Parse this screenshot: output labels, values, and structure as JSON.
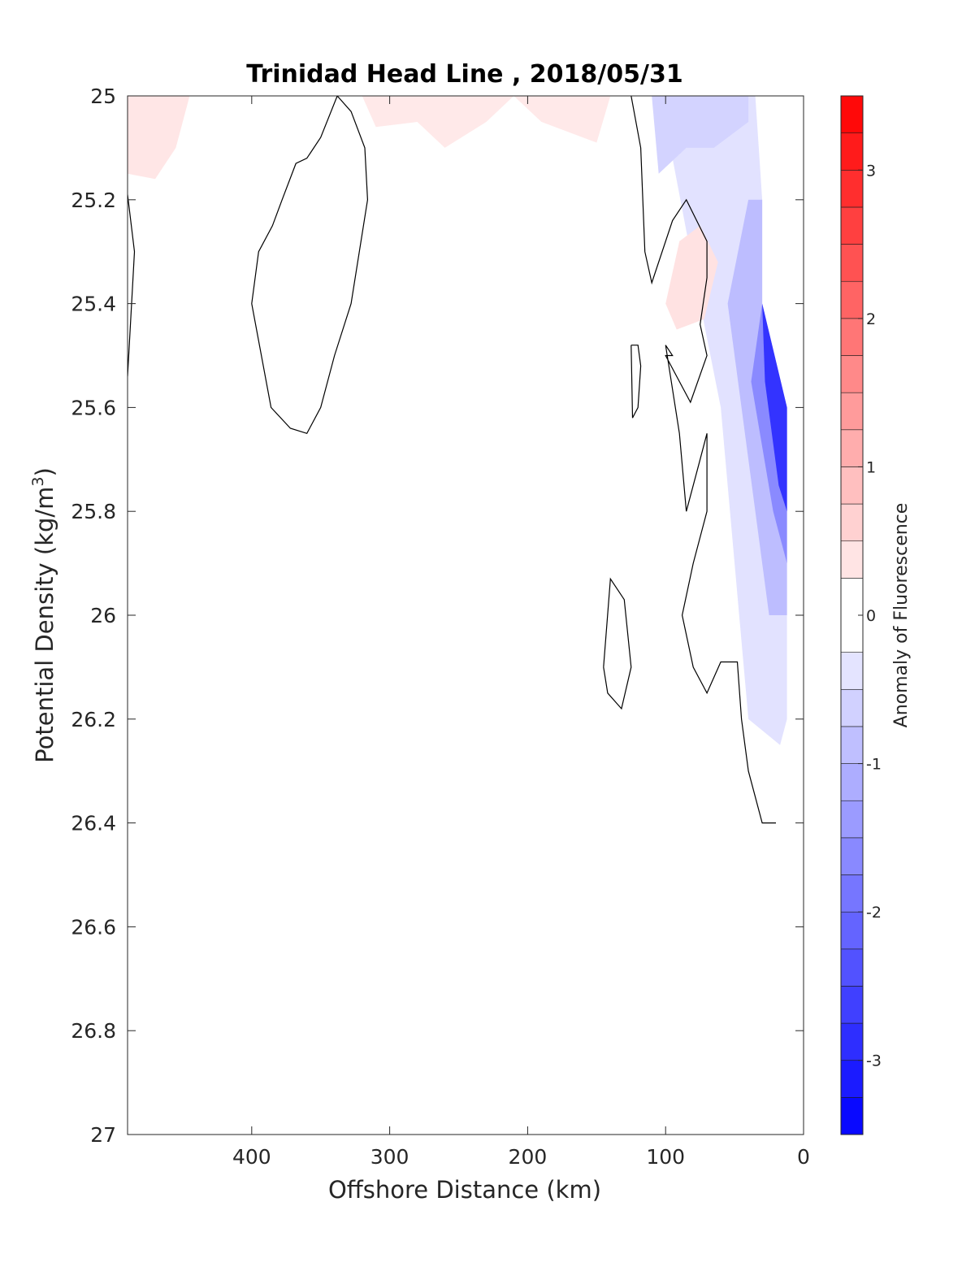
{
  "chart_data": {
    "type": "heatmap",
    "title": "Trinidad Head Line , 2018/05/31",
    "xlabel": "Offshore Distance (km)",
    "ylabel": "Potential Density (kg/m",
    "ylabel_superscript": "3",
    "ylabel_suffix": ")",
    "x_reversed": true,
    "y_reversed": true,
    "xlim": [
      490,
      0
    ],
    "ylim": [
      25,
      27
    ],
    "x_ticks": [
      400,
      300,
      200,
      100,
      0
    ],
    "x_tick_labels": [
      "400",
      "300",
      "200",
      "100",
      "0"
    ],
    "y_ticks": [
      25,
      25.2,
      25.4,
      25.6,
      25.8,
      26,
      26.2,
      26.4,
      26.6,
      26.8,
      27
    ],
    "y_tick_labels": [
      "25",
      "25.2",
      "25.4",
      "25.6",
      "25.8",
      "26",
      "26.2",
      "26.4",
      "26.6",
      "26.8",
      "27"
    ],
    "grid": false,
    "colormap": "blue-white-red",
    "colorbar": {
      "label": "Anomaly of Fluorescence",
      "range": [
        -3.5,
        3.5
      ],
      "levels": [
        -3.5,
        -3.25,
        -3.0,
        -2.75,
        -2.5,
        -2.25,
        -2.0,
        -1.75,
        -1.5,
        -1.25,
        -1.0,
        -0.75,
        -0.5,
        -0.25,
        0.25,
        0.5,
        0.75,
        1.0,
        1.25,
        1.5,
        1.75,
        2.0,
        2.25,
        2.5,
        2.75,
        3.0,
        3.25,
        3.5
      ],
      "ticks": [
        -3,
        -2,
        -1,
        0,
        1,
        2,
        3
      ],
      "tick_labels": [
        "-3",
        "-2",
        "-1",
        "0",
        "1",
        "2",
        "3"
      ],
      "negative_color": "#0000ff",
      "positive_color": "#ff0000",
      "zero_color": "#ffffff"
    },
    "filled_regions": [
      {
        "name": "nearshore-negative-weak",
        "value": -0.4,
        "points": [
          [
            35,
            25
          ],
          [
            30,
            25.2
          ],
          [
            30,
            25.4
          ],
          [
            12,
            25.6
          ],
          [
            12,
            26.2
          ],
          [
            17,
            26.25
          ],
          [
            40,
            26.2
          ],
          [
            60,
            25.6
          ],
          [
            75,
            25.4
          ],
          [
            100,
            25.05
          ],
          [
            100,
            25
          ]
        ]
      },
      {
        "name": "nearshore-negative-mid",
        "value": -0.9,
        "points": [
          [
            30,
            25.2
          ],
          [
            30,
            25.4
          ],
          [
            12,
            25.6
          ],
          [
            12,
            26.0
          ],
          [
            25,
            26.0
          ],
          [
            45,
            25.6
          ],
          [
            55,
            25.4
          ],
          [
            40,
            25.2
          ]
        ]
      },
      {
        "name": "nearshore-negative-strong",
        "value": -1.6,
        "points": [
          [
            30,
            25.4
          ],
          [
            12,
            25.6
          ],
          [
            12,
            25.9
          ],
          [
            22,
            25.8
          ],
          [
            38,
            25.55
          ]
        ]
      },
      {
        "name": "nearshore-negative-core",
        "value": -2.8,
        "points": [
          [
            30,
            25.4
          ],
          [
            12,
            25.6
          ],
          [
            12,
            25.8
          ],
          [
            18,
            25.75
          ],
          [
            28,
            25.55
          ]
        ]
      },
      {
        "name": "surface-negative-patch",
        "value": -0.6,
        "points": [
          [
            110,
            25
          ],
          [
            105,
            25.15
          ],
          [
            85,
            25.1
          ],
          [
            65,
            25.1
          ],
          [
            40,
            25.05
          ],
          [
            40,
            25
          ]
        ]
      },
      {
        "name": "offshore-positive-patch",
        "value": 0.35,
        "points": [
          [
            490,
            25
          ],
          [
            490,
            25.15
          ],
          [
            470,
            25.16
          ],
          [
            455,
            25.1
          ],
          [
            445,
            25
          ]
        ]
      },
      {
        "name": "surface-positive-patches",
        "value": 0.3,
        "points": [
          [
            320,
            25
          ],
          [
            310,
            25.06
          ],
          [
            280,
            25.05
          ],
          [
            260,
            25.1
          ],
          [
            230,
            25.05
          ],
          [
            210,
            25
          ],
          [
            190,
            25.05
          ],
          [
            150,
            25.09
          ],
          [
            140,
            25
          ]
        ]
      },
      {
        "name": "mid-positive-patch",
        "value": 0.4,
        "points": [
          [
            90,
            25.28
          ],
          [
            75,
            25.25
          ],
          [
            62,
            25.32
          ],
          [
            72,
            25.43
          ],
          [
            92,
            25.45
          ],
          [
            100,
            25.4
          ]
        ]
      }
    ],
    "zero_contours": [
      {
        "name": "far-left",
        "points": [
          [
            490,
            25.19
          ],
          [
            485,
            25.3
          ],
          [
            490,
            25.54
          ]
        ]
      },
      {
        "name": "offshore-loop",
        "points": [
          [
            338,
            25.0
          ],
          [
            328,
            25.03
          ],
          [
            318,
            25.1
          ],
          [
            316,
            25.2
          ],
          [
            328,
            25.4
          ],
          [
            340,
            25.5
          ],
          [
            350,
            25.6
          ],
          [
            360,
            25.65
          ],
          [
            372,
            25.64
          ],
          [
            386,
            25.6
          ],
          [
            400,
            25.4
          ],
          [
            395,
            25.3
          ],
          [
            385,
            25.25
          ],
          [
            378,
            25.2
          ],
          [
            368,
            25.13
          ],
          [
            360,
            25.12
          ],
          [
            350,
            25.08
          ],
          [
            338,
            25.0
          ]
        ]
      },
      {
        "name": "nearshore-main",
        "points": [
          [
            125,
            25.0
          ],
          [
            118,
            25.1
          ],
          [
            115,
            25.3
          ],
          [
            110,
            25.36
          ],
          [
            95,
            25.24
          ],
          [
            85,
            25.2
          ],
          [
            70,
            25.28
          ],
          [
            70,
            25.35
          ],
          [
            75,
            25.44
          ],
          [
            70,
            25.5
          ],
          [
            82,
            25.59
          ],
          [
            100,
            25.5
          ],
          [
            95,
            25.5
          ],
          [
            100,
            25.48
          ],
          [
            90,
            25.65
          ],
          [
            85,
            25.8
          ],
          [
            75,
            25.7
          ],
          [
            70,
            25.65
          ],
          [
            70,
            25.8
          ],
          [
            80,
            25.9
          ],
          [
            88,
            26.0
          ],
          [
            80,
            26.1
          ],
          [
            70,
            26.15
          ],
          [
            60,
            26.09
          ],
          [
            48,
            26.09
          ],
          [
            45,
            26.2
          ],
          [
            40,
            26.3
          ],
          [
            30,
            26.4
          ],
          [
            20,
            26.4
          ]
        ]
      },
      {
        "name": "inner-loop",
        "points": [
          [
            125,
            25.48
          ],
          [
            124,
            25.62
          ],
          [
            120,
            25.6
          ],
          [
            118,
            25.52
          ],
          [
            120,
            25.48
          ],
          [
            125,
            25.48
          ]
        ]
      },
      {
        "name": "lower-loop",
        "points": [
          [
            145,
            26.1
          ],
          [
            142,
            26.15
          ],
          [
            132,
            26.18
          ],
          [
            125,
            26.1
          ],
          [
            130,
            25.97
          ],
          [
            140,
            25.93
          ],
          [
            145,
            26.1
          ]
        ]
      }
    ]
  }
}
